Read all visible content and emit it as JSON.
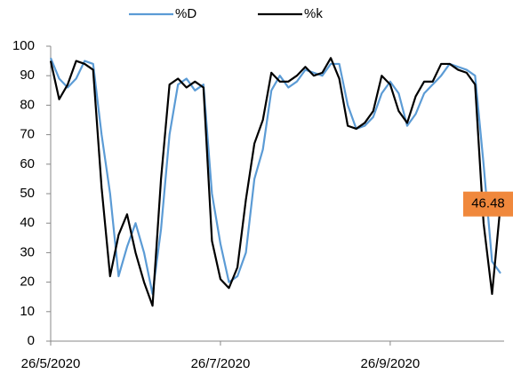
{
  "chart_data": {
    "type": "line",
    "categories": [
      "26/5/2020",
      null,
      null,
      null,
      null,
      null,
      null,
      null,
      null,
      null,
      null,
      null,
      null,
      null,
      null,
      null,
      null,
      null,
      null,
      null,
      "26/7/2020",
      null,
      null,
      null,
      null,
      null,
      null,
      null,
      null,
      null,
      null,
      null,
      null,
      null,
      null,
      null,
      null,
      null,
      null,
      null,
      "26/9/2020",
      null,
      null,
      null,
      null,
      null,
      null,
      null,
      null,
      null,
      null,
      null,
      null,
      null
    ],
    "series": [
      {
        "name": "%D",
        "color": "#5b9bd5",
        "values": [
          96,
          89,
          86,
          89,
          95,
          94,
          70,
          50,
          22,
          32,
          40,
          30,
          16,
          38,
          70,
          87,
          89,
          85,
          87,
          50,
          33,
          20,
          22,
          30,
          55,
          65,
          85,
          90,
          86,
          88,
          92,
          91,
          90,
          94,
          94,
          80,
          72,
          73,
          76,
          84,
          88,
          84,
          73,
          77,
          84,
          87,
          90,
          94,
          93,
          92,
          90,
          60,
          27,
          23
        ]
      },
      {
        "name": "%k",
        "color": "#000000",
        "values": [
          95,
          82,
          87,
          95,
          94,
          92,
          52,
          22,
          36,
          43,
          30,
          20,
          12,
          55,
          87,
          89,
          86,
          88,
          86,
          34,
          21,
          18,
          25,
          48,
          67,
          75,
          91,
          88,
          88,
          90,
          93,
          90,
          91,
          96,
          89,
          73,
          72,
          74,
          78,
          90,
          87,
          78,
          74,
          83,
          88,
          88,
          94,
          94,
          92,
          91,
          87,
          40,
          16,
          46.48
        ]
      }
    ],
    "ylim": [
      0,
      100
    ],
    "yticks": [
      0,
      10,
      20,
      30,
      40,
      50,
      60,
      70,
      80,
      90,
      100
    ],
    "grid": false,
    "legend": "top",
    "last_label_color": "#f0883c"
  }
}
